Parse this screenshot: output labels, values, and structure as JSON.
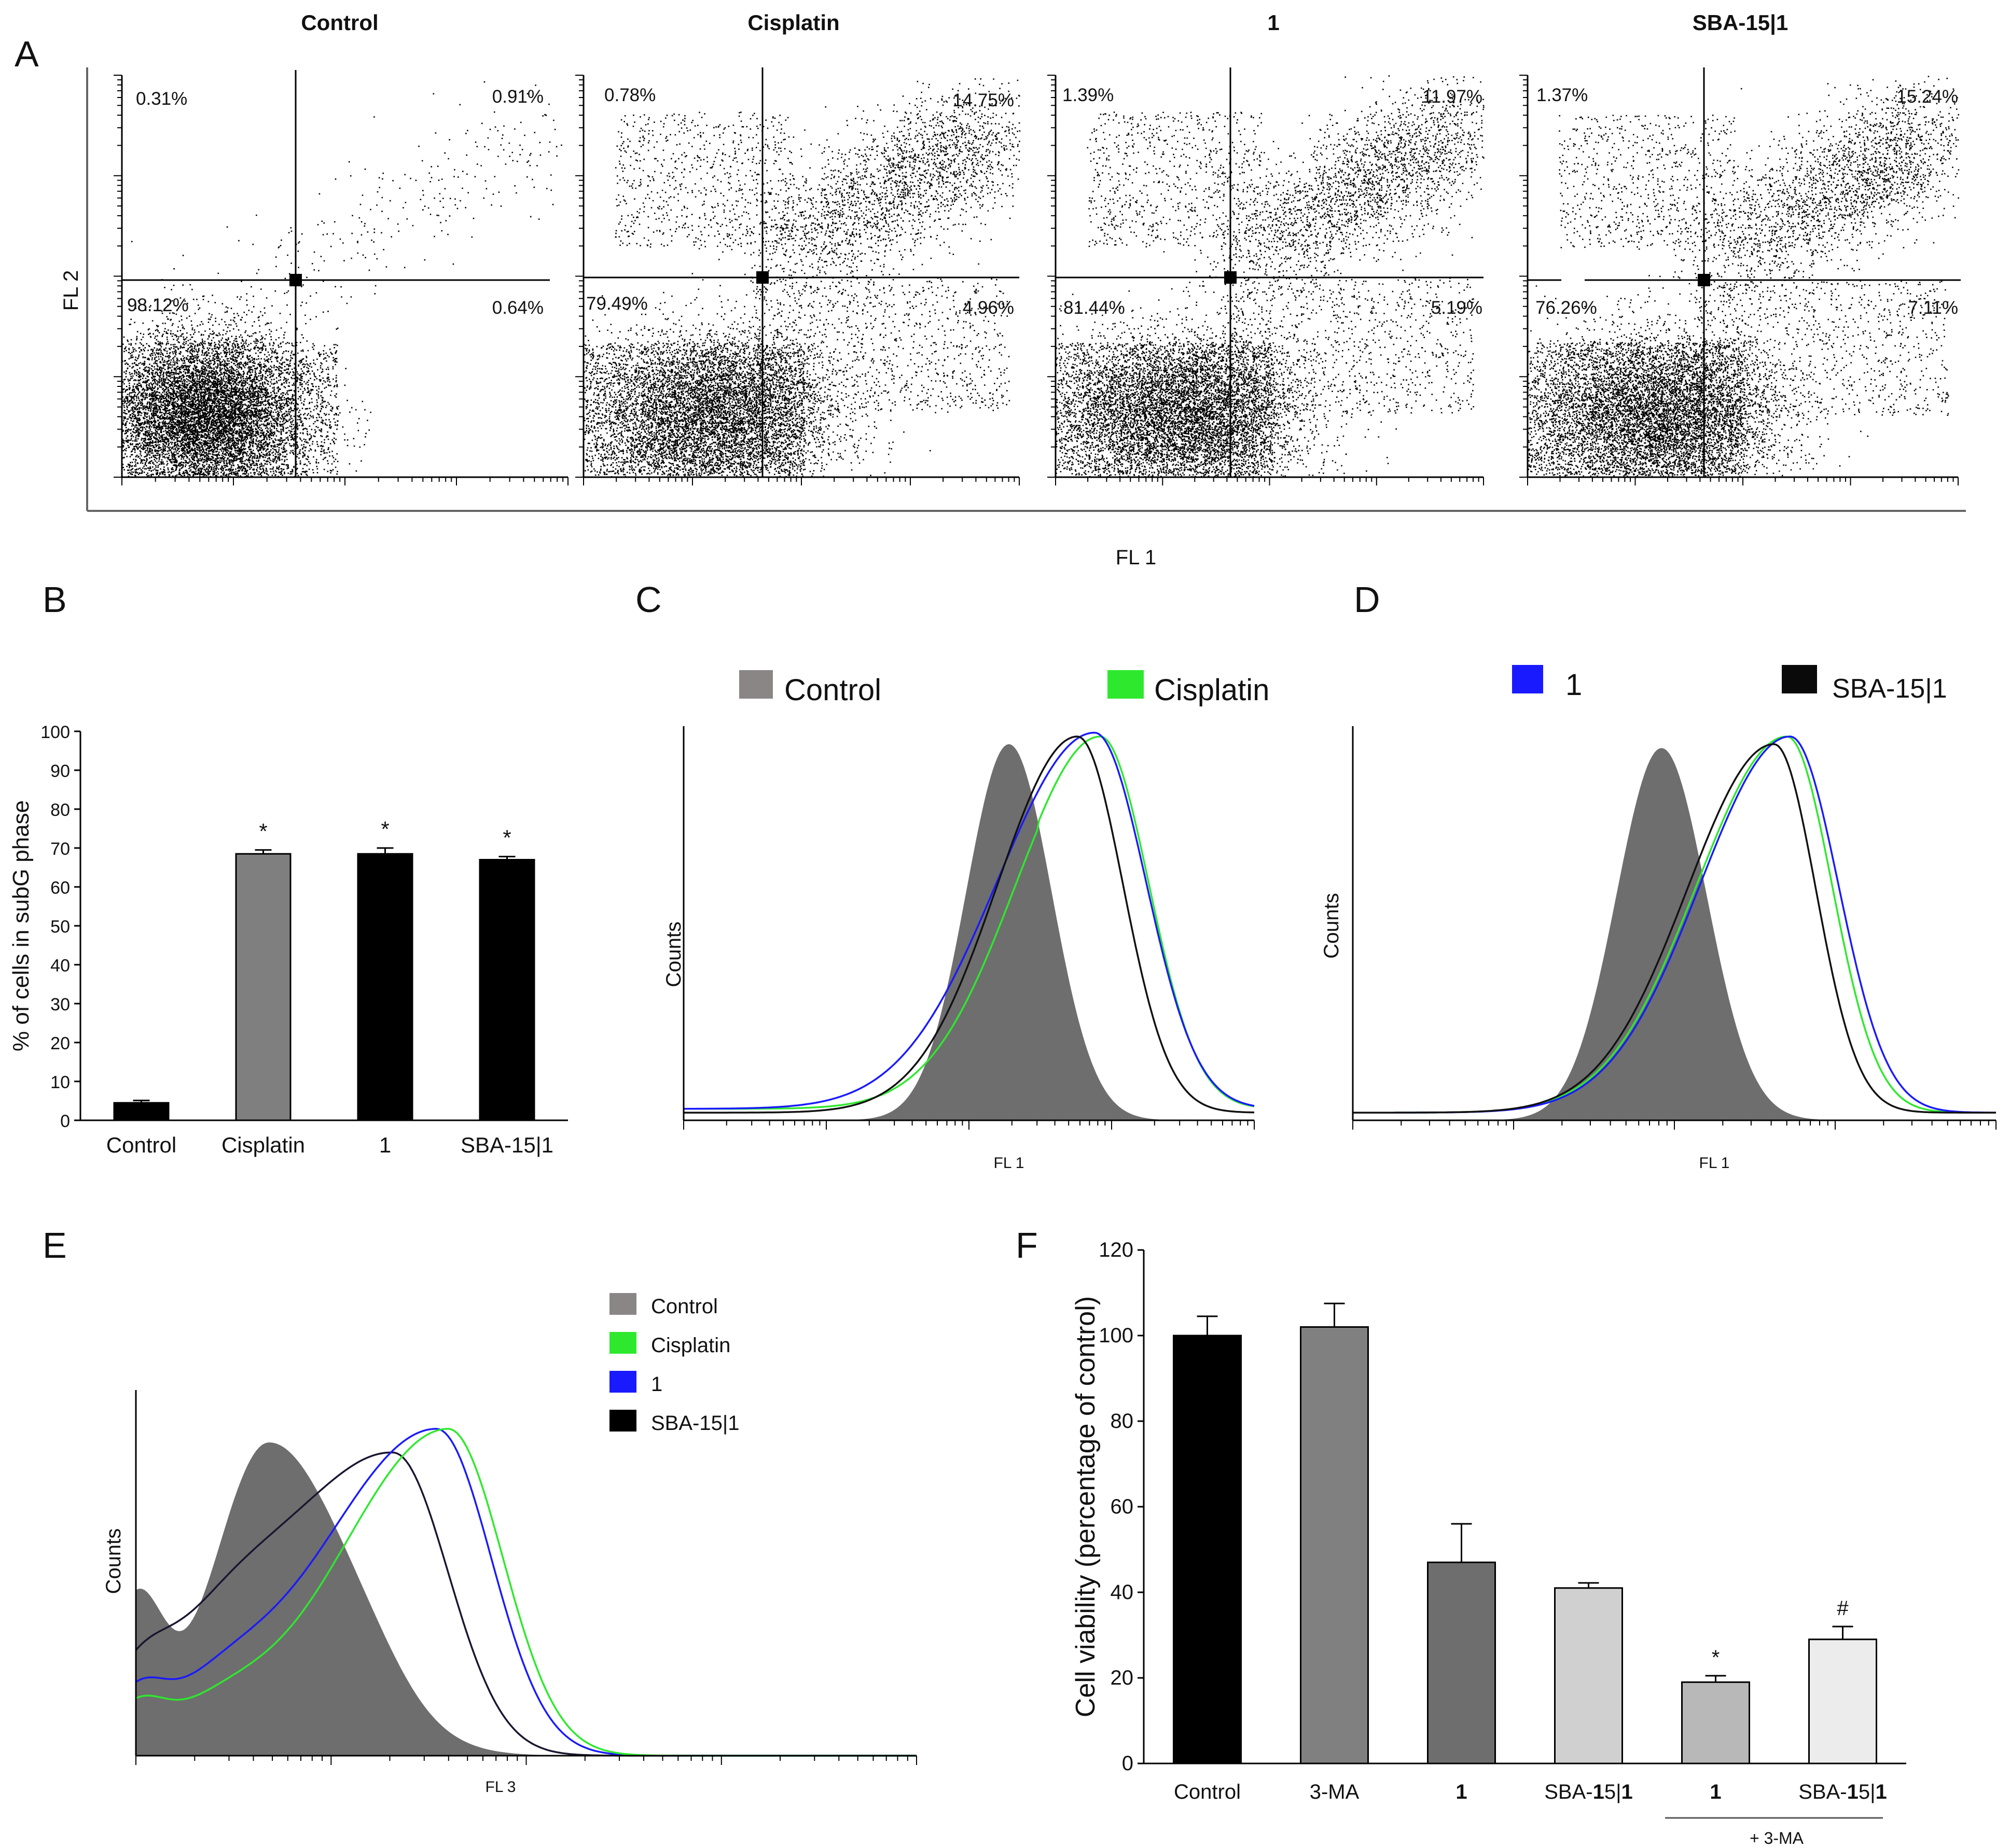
{
  "panels": {
    "a": "A",
    "b": "B",
    "c": "C",
    "d": "D",
    "e": "E",
    "f": "F"
  },
  "panel_a": {
    "xlabel": "FL 1",
    "ylabel": "FL 2",
    "plots": [
      {
        "title": "Control",
        "ul": "0.31%",
        "ur": "0.91%",
        "ll": "98.12%",
        "lr": "0.64%"
      },
      {
        "title": "Cisplatin",
        "ul": "0.78%",
        "ur": "14.75%",
        "ll": "79.49%",
        "lr": "4.96%"
      },
      {
        "title": "1",
        "ul": "1.39%",
        "ur": "11.97%",
        "ll": "81.44%",
        "lr": "5.19%"
      },
      {
        "title": "SBA-15|1",
        "ul": "1.37%",
        "ur": "15.24%",
        "ll": "76.26%",
        "lr": "7.11%"
      }
    ]
  },
  "chart_data": [
    {
      "type": "bar",
      "panel": "B",
      "ylabel": "% of cells in subG phase",
      "ylim": [
        0,
        100
      ],
      "yticks": [
        "0",
        "10",
        "20",
        "30",
        "40",
        "50",
        "60",
        "70",
        "80",
        "90",
        "100"
      ],
      "categories": [
        "Control",
        "Cisplatin",
        "1",
        "SBA-15|1"
      ],
      "values": [
        4.5,
        68.5,
        68.5,
        67
      ],
      "errors": [
        0.6,
        1.0,
        1.5,
        0.8
      ],
      "colors": [
        "#000000",
        "#7f7f7f",
        "#000000",
        "#000000"
      ],
      "significance": [
        "",
        "*",
        "*",
        "*"
      ]
    },
    {
      "type": "line",
      "panel": "C",
      "xlabel": "FL 1",
      "ylabel": "Counts",
      "legend": [
        "Control",
        "Cisplatin"
      ],
      "series": [
        "Control (filled)",
        "Cisplatin",
        "1",
        "SBA-15|1"
      ]
    },
    {
      "type": "line",
      "panel": "D",
      "xlabel": "FL 1",
      "ylabel": "Counts",
      "legend": [
        "1",
        "SBA-15|1"
      ],
      "series": [
        "Control (filled)",
        "Cisplatin",
        "1",
        "SBA-15|1"
      ]
    },
    {
      "type": "line",
      "panel": "E",
      "xlabel": "FL 3",
      "ylabel": "Counts",
      "legend": [
        "Control",
        "Cisplatin",
        "1",
        "SBA-15|1"
      ],
      "series": [
        "Control (filled)",
        "Cisplatin",
        "1",
        "SBA-15|1"
      ]
    },
    {
      "type": "bar",
      "panel": "F",
      "ylabel": "Cell viability (percentage of control)",
      "ylim": [
        0,
        120
      ],
      "yticks": [
        "0",
        "20",
        "40",
        "60",
        "80",
        "100",
        "120"
      ],
      "categories": [
        "Control",
        "3-MA",
        "1",
        "SBA-15|1",
        "1",
        "SBA-15|1"
      ],
      "group_label": "+ 3-MA",
      "values": [
        100,
        102,
        47,
        41,
        19,
        29
      ],
      "errors": [
        4.5,
        5.5,
        9,
        1.2,
        1.5,
        3
      ],
      "colors": [
        "#000000",
        "#808080",
        "#6e6e6e",
        "#d0d0d0",
        "#b8b8b8",
        "#ececec"
      ],
      "significance": [
        "",
        "",
        "",
        "",
        "*",
        "#"
      ]
    }
  ],
  "legend_colors": {
    "control": "#7f7f7f",
    "cisplatin": "#2ee82e",
    "one": "#1a1aff",
    "sba": "#000000"
  }
}
